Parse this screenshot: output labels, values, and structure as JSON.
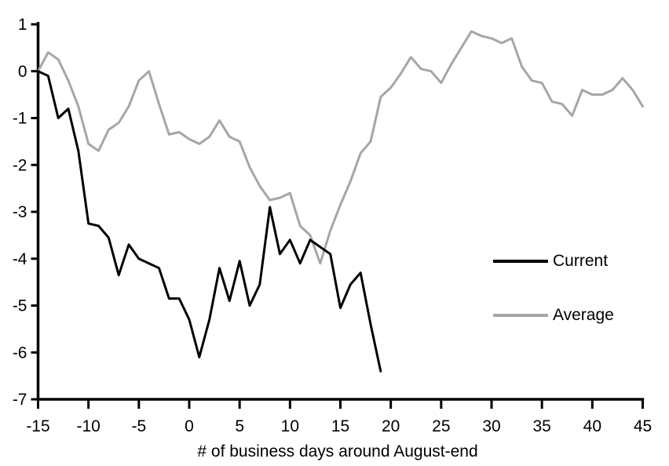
{
  "chart_data": {
    "type": "line",
    "title": "",
    "xlabel": "# of business days around August-end",
    "ylabel": "",
    "xlim": [
      -15,
      45
    ],
    "ylim": [
      -7,
      1
    ],
    "x_ticks": [
      -15,
      -10,
      -5,
      0,
      5,
      10,
      15,
      20,
      25,
      30,
      35,
      40,
      45
    ],
    "y_ticks": [
      1,
      0,
      -1,
      -2,
      -3,
      -4,
      -5,
      -6,
      -7
    ],
    "grid": false,
    "legend_position": "right-middle",
    "axis_color": "#000000",
    "background_color": "#ffffff",
    "series": [
      {
        "name": "Current",
        "color": "#000000",
        "x": [
          -15,
          -14,
          -13,
          -12,
          -11,
          -10,
          -9,
          -8,
          -7,
          -6,
          -5,
          -4,
          -3,
          -2,
          -1,
          0,
          1,
          2,
          3,
          4,
          5,
          6,
          7,
          8,
          9,
          10,
          11,
          12,
          13,
          14,
          15,
          16,
          17,
          18,
          19
        ],
        "values": [
          0.0,
          -0.1,
          -1.0,
          -0.8,
          -1.7,
          -3.25,
          -3.3,
          -3.55,
          -4.35,
          -3.7,
          -4.0,
          -4.1,
          -4.2,
          -4.85,
          -4.85,
          -5.3,
          -6.1,
          -5.3,
          -4.2,
          -4.9,
          -4.05,
          -5.0,
          -4.55,
          -2.9,
          -3.9,
          -3.6,
          -4.1,
          -3.6,
          -3.75,
          -3.9,
          -5.05,
          -4.55,
          -4.3,
          -5.4,
          -6.4
        ]
      },
      {
        "name": "Average",
        "color": "#a6a6a6",
        "x": [
          -15,
          -14,
          -13,
          -12,
          -11,
          -10,
          -9,
          -8,
          -7,
          -6,
          -5,
          -4,
          -3,
          -2,
          -1,
          0,
          1,
          2,
          3,
          4,
          5,
          6,
          7,
          8,
          9,
          10,
          11,
          12,
          13,
          14,
          15,
          16,
          17,
          18,
          19,
          20,
          21,
          22,
          23,
          24,
          25,
          26,
          27,
          28,
          29,
          30,
          31,
          32,
          33,
          34,
          35,
          36,
          37,
          38,
          39,
          40,
          41,
          42,
          43,
          44,
          45
        ],
        "values": [
          0.0,
          0.4,
          0.25,
          -0.2,
          -0.75,
          -1.55,
          -1.7,
          -1.25,
          -1.1,
          -0.75,
          -0.2,
          0.0,
          -0.7,
          -1.35,
          -1.3,
          -1.45,
          -1.55,
          -1.4,
          -1.05,
          -1.4,
          -1.5,
          -2.05,
          -2.45,
          -2.75,
          -2.7,
          -2.6,
          -3.3,
          -3.5,
          -4.1,
          -3.4,
          -2.85,
          -2.35,
          -1.75,
          -1.5,
          -0.55,
          -0.35,
          -0.05,
          0.3,
          0.05,
          0.0,
          -0.25,
          0.15,
          0.5,
          0.85,
          0.75,
          0.7,
          0.6,
          0.7,
          0.1,
          -0.2,
          -0.25,
          -0.65,
          -0.7,
          -0.95,
          -0.4,
          -0.5,
          -0.5,
          -0.4,
          -0.15,
          -0.4,
          -0.75
        ]
      }
    ]
  },
  "legend": {
    "items": [
      {
        "label": "Current",
        "color": "#000000"
      },
      {
        "label": "Average",
        "color": "#a6a6a6"
      }
    ]
  }
}
